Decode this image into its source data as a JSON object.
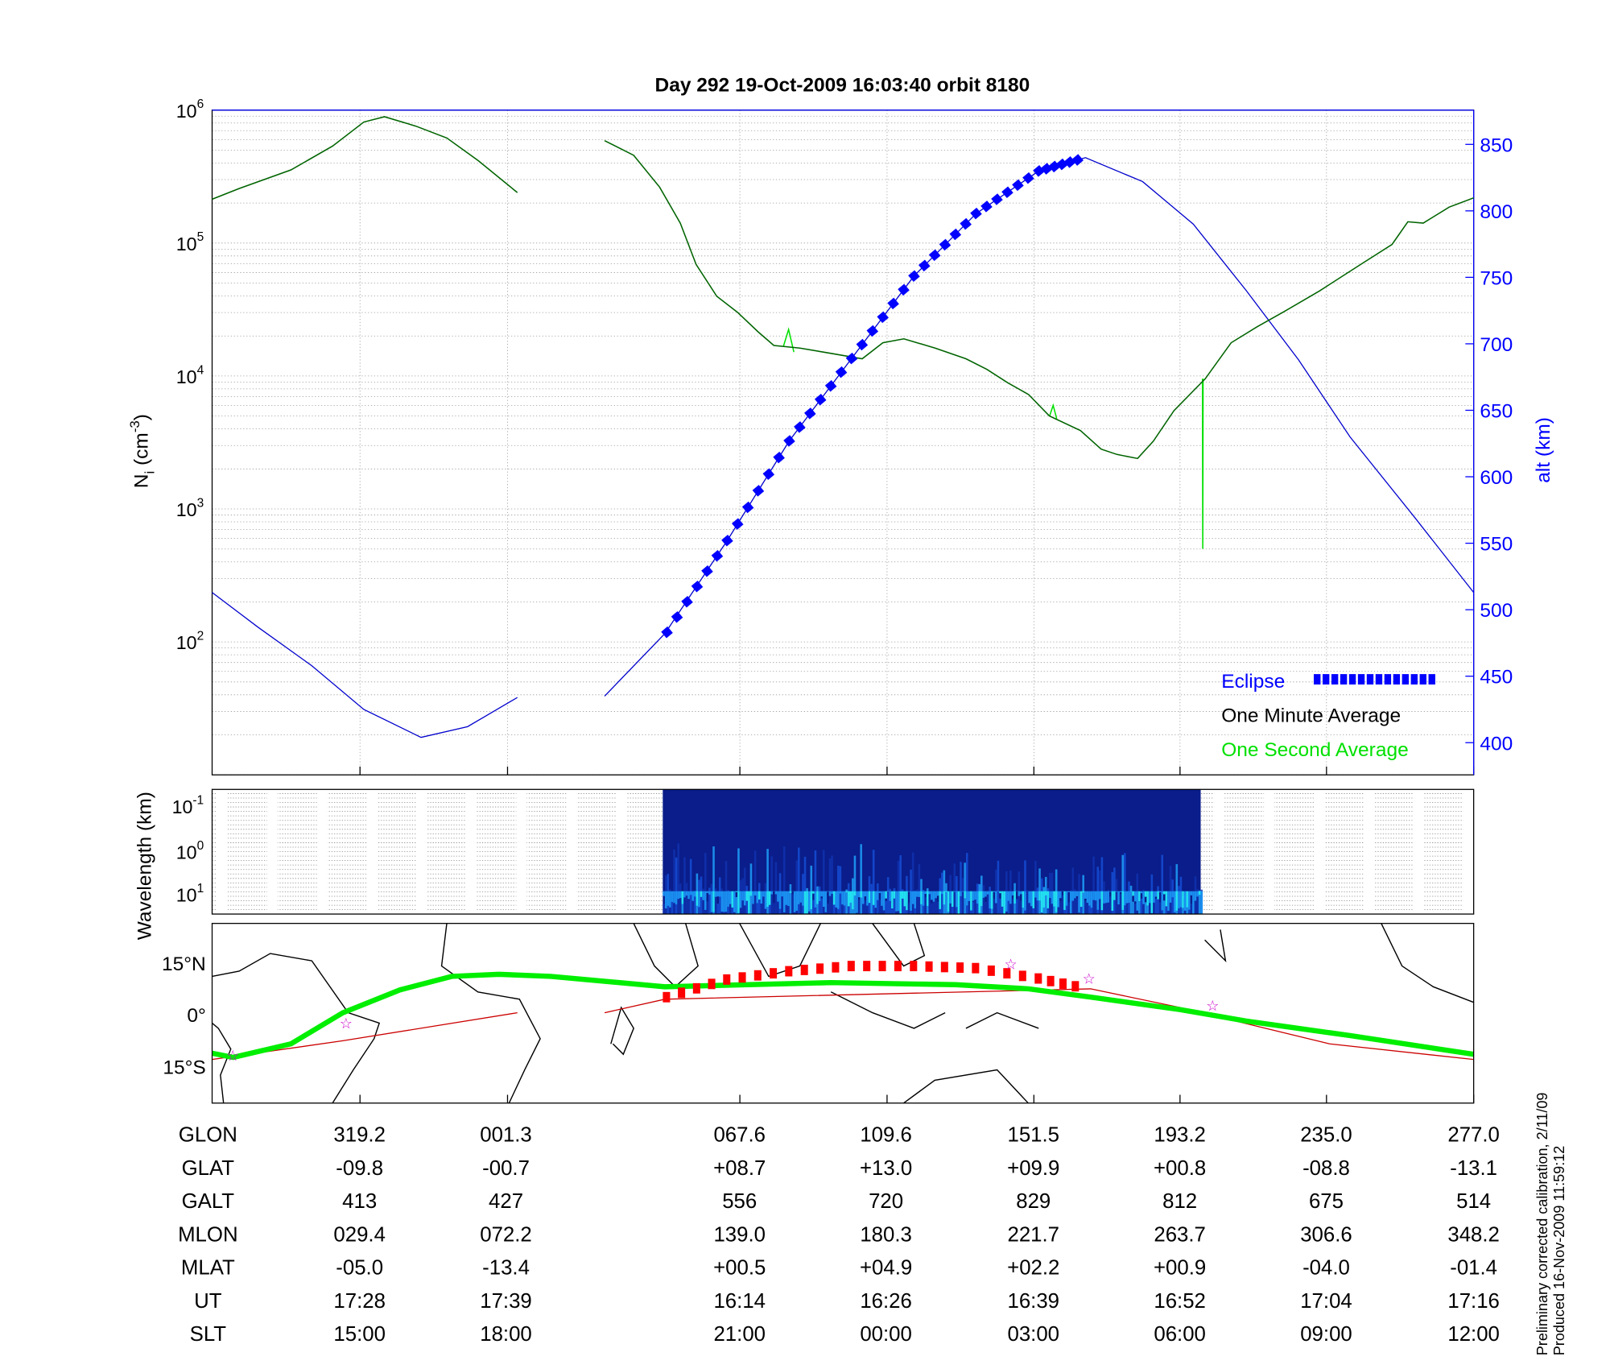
{
  "title": "Day 292  19-Oct-2009 16:03:40   orbit 8180",
  "footnote": [
    "Preliminary corrected calibration, 2/11/09",
    "Produced 16-Nov-2009 11:59:12"
  ],
  "colors": {
    "one_minute": "#006400",
    "one_second": "#00e000",
    "altitude": "#0000cc",
    "eclipse": "#0000ff",
    "track": "#00ee00",
    "eclipse_track": "#ff0000",
    "dip_line": "#cc0000",
    "star": "#cc00cc"
  },
  "chart_data": [
    {
      "type": "line",
      "ylabel": "N_i (cm^-3)",
      "y2label": "alt (km)",
      "yscale": "log",
      "ylim": [
        10,
        1000000
      ],
      "y2lim": [
        376,
        876
      ],
      "xlim": [
        277,
        637
      ],
      "yticks": [
        "10^2",
        "10^3",
        "10^4",
        "10^5",
        "10^6"
      ],
      "y2ticks": [
        "400",
        "450",
        "500",
        "550",
        "600",
        "650",
        "700",
        "750",
        "800",
        "850"
      ],
      "grid": true,
      "legend": {
        "placement": "bottom-right",
        "entries": [
          "Eclipse",
          "One Minute Average",
          "One Second Average"
        ]
      },
      "series": [
        {
          "name": "One Minute Average",
          "axis": "left",
          "segments": [
            [
              [
                277,
                5.33
              ],
              [
                284.7,
                5.41
              ],
              [
                299.5,
                5.55
              ],
              [
                311.4,
                5.73
              ],
              [
                320.3,
                5.91
              ],
              [
                326.2,
                5.95
              ],
              [
                335.1,
                5.88
              ],
              [
                344,
                5.79
              ],
              [
                352.9,
                5.62
              ],
              [
                364.1,
                5.38
              ]
            ],
            [
              [
                389,
                5.77
              ],
              [
                397.3,
                5.66
              ],
              [
                404.7,
                5.42
              ],
              [
                410.6,
                5.15
              ],
              [
                415.1,
                4.84
              ],
              [
                421,
                4.6
              ],
              [
                426.9,
                4.48
              ],
              [
                432.9,
                4.33
              ],
              [
                437.3,
                4.23
              ],
              [
                444.7,
                4.21
              ],
              [
                453.6,
                4.17
              ],
              [
                462.5,
                4.13
              ],
              [
                468.4,
                4.25
              ],
              [
                474.4,
                4.28
              ],
              [
                483.3,
                4.21
              ],
              [
                492.1,
                4.13
              ],
              [
                498.1,
                4.05
              ],
              [
                504,
                3.95
              ],
              [
                510,
                3.86
              ],
              [
                515.9,
                3.7
              ],
              [
                524.8,
                3.59
              ],
              [
                530.7,
                3.45
              ],
              [
                535.2,
                3.41
              ],
              [
                541.1,
                3.38
              ],
              [
                545.6,
                3.51
              ],
              [
                551.5,
                3.74
              ],
              [
                560.4,
                3.98
              ],
              [
                567.8,
                4.25
              ],
              [
                575.2,
                4.37
              ],
              [
                582.6,
                4.48
              ],
              [
                593,
                4.64
              ],
              [
                604.8,
                4.84
              ],
              [
                613.7,
                4.99
              ],
              [
                618.2,
                5.16
              ],
              [
                622.6,
                5.15
              ],
              [
                630,
                5.27
              ],
              [
                637,
                5.34
              ]
            ]
          ]
        },
        {
          "name": "One Second Average",
          "axis": "left",
          "segments": [
            [
              [
                559.6,
                3.98
              ],
              [
                559.7,
                2.7
              ],
              [
                559.8,
                3.98
              ]
            ],
            [
              [
                440,
                4.22
              ],
              [
                441.5,
                4.35
              ],
              [
                443,
                4.18
              ]
            ],
            [
              [
                516,
                3.7
              ],
              [
                517,
                3.78
              ],
              [
                518,
                3.68
              ]
            ]
          ]
        },
        {
          "name": "altitude",
          "axis": "right",
          "segments": [
            [
              [
                277,
                513
              ],
              [
                290,
                487
              ],
              [
                305.4,
                458
              ],
              [
                320.3,
                425
              ],
              [
                336.6,
                404
              ],
              [
                349.9,
                412
              ],
              [
                364.1,
                434
              ]
            ],
            [
              [
                389,
                435
              ],
              [
                406.2,
                482
              ],
              [
                424,
                552
              ],
              [
                441.7,
                627
              ],
              [
                459.5,
                689
              ],
              [
                477.3,
                751
              ],
              [
                495,
                798
              ],
              [
                512.9,
                830
              ],
              [
                526.2,
                840
              ],
              [
                542.5,
                822
              ],
              [
                557,
                790
              ],
              [
                572.1,
                740
              ],
              [
                587,
                688
              ],
              [
                601.7,
                630
              ],
              [
                620,
                570
              ],
              [
                637,
                513
              ]
            ]
          ]
        },
        {
          "name": "Eclipse",
          "axis": "right",
          "points": [
            [
              406.8,
              483
            ],
            [
              424,
              552
            ],
            [
              441.7,
              627
            ],
            [
              459.5,
              689
            ],
            [
              477.3,
              751
            ],
            [
              495,
              798
            ],
            [
              512.9,
              830
            ],
            [
              526.2,
              840
            ]
          ]
        }
      ]
    },
    {
      "type": "heatmap",
      "ylabel": "Wavelength (km)",
      "yticks": [
        "10^-1",
        "10^0",
        "10^1"
      ],
      "x_extent": [
        405.6,
        559.1
      ]
    },
    {
      "type": "line",
      "yticks": [
        "15°N",
        "0°",
        "15°S"
      ],
      "ylim": [
        -26,
        26
      ],
      "xlim": [
        277,
        637
      ],
      "series": [
        {
          "name": "track",
          "points": [
            [
              277,
              -11.4
            ],
            [
              283,
              -12.6
            ],
            [
              299.5,
              -8.7
            ],
            [
              314.3,
              0.3
            ],
            [
              330.6,
              6.9
            ],
            [
              345.4,
              10.8
            ],
            [
              358.8,
              11.4
            ],
            [
              373.6,
              10.8
            ],
            [
              406.2,
              7.8
            ],
            [
              429.9,
              8.4
            ],
            [
              453.6,
              9
            ],
            [
              489.2,
              8.4
            ],
            [
              510,
              7.2
            ],
            [
              527.7,
              4.8
            ],
            [
              553.2,
              1.2
            ],
            [
              572.1,
              -2.1
            ],
            [
              601.7,
              -6.3
            ],
            [
              637,
              -11.7
            ]
          ]
        },
        {
          "name": "dip_line",
          "segments": [
            [
              [
                277,
                -13.2
              ],
              [
                314.3,
                -7.8
              ],
              [
                364.1,
                0.3
              ]
            ],
            [
              [
                389,
                0.3
              ],
              [
                406.2,
                4.2
              ],
              [
                527.7,
                7.2
              ],
              [
                553.2,
                1.8
              ],
              [
                595.9,
                -8.7
              ],
              [
                637,
                -13.2
              ]
            ]
          ]
        },
        {
          "name": "eclipse_track",
          "points": [
            [
              406.8,
              4.8
            ],
            [
              424,
              9.9
            ],
            [
              441.7,
              12.3
            ],
            [
              459.5,
              13.8
            ],
            [
              477.3,
              13.8
            ],
            [
              495,
              13.2
            ],
            [
              512.9,
              10.2
            ],
            [
              527,
              7.2
            ]
          ]
        },
        {
          "name": "stars",
          "points": [
            [
              282.9,
              -12
            ],
            [
              315.2,
              -2.7
            ],
            [
              504.9,
              14.4
            ],
            [
              527.2,
              10.2
            ],
            [
              562.5,
              2.4
            ]
          ]
        }
      ]
    }
  ],
  "table": {
    "row_labels": [
      "GLON",
      "GLAT",
      "GALT",
      "MLON",
      "MLAT",
      "UT",
      "SLT"
    ],
    "columns": [
      [
        "319.2",
        "-09.8",
        "413",
        "029.4",
        "-05.0",
        "17:28",
        "15:00"
      ],
      [
        "001.3",
        "-00.7",
        "427",
        "072.2",
        "-13.4",
        "17:39",
        "18:00"
      ],
      [
        "067.6",
        "+08.7",
        "556",
        "139.0",
        "+00.5",
        "16:14",
        "21:00"
      ],
      [
        "109.6",
        "+13.0",
        "720",
        "180.3",
        "+04.9",
        "16:26",
        "00:00"
      ],
      [
        "151.5",
        "+09.9",
        "829",
        "221.7",
        "+02.2",
        "16:39",
        "03:00"
      ],
      [
        "193.2",
        "+00.8",
        "812",
        "263.7",
        "+00.9",
        "16:52",
        "06:00"
      ],
      [
        "235.0",
        "-08.8",
        "675",
        "306.6",
        "-04.0",
        "17:04",
        "09:00"
      ],
      [
        "277.0",
        "-13.1",
        "514",
        "348.2",
        "-01.4",
        "17:16",
        "12:00"
      ]
    ]
  }
}
